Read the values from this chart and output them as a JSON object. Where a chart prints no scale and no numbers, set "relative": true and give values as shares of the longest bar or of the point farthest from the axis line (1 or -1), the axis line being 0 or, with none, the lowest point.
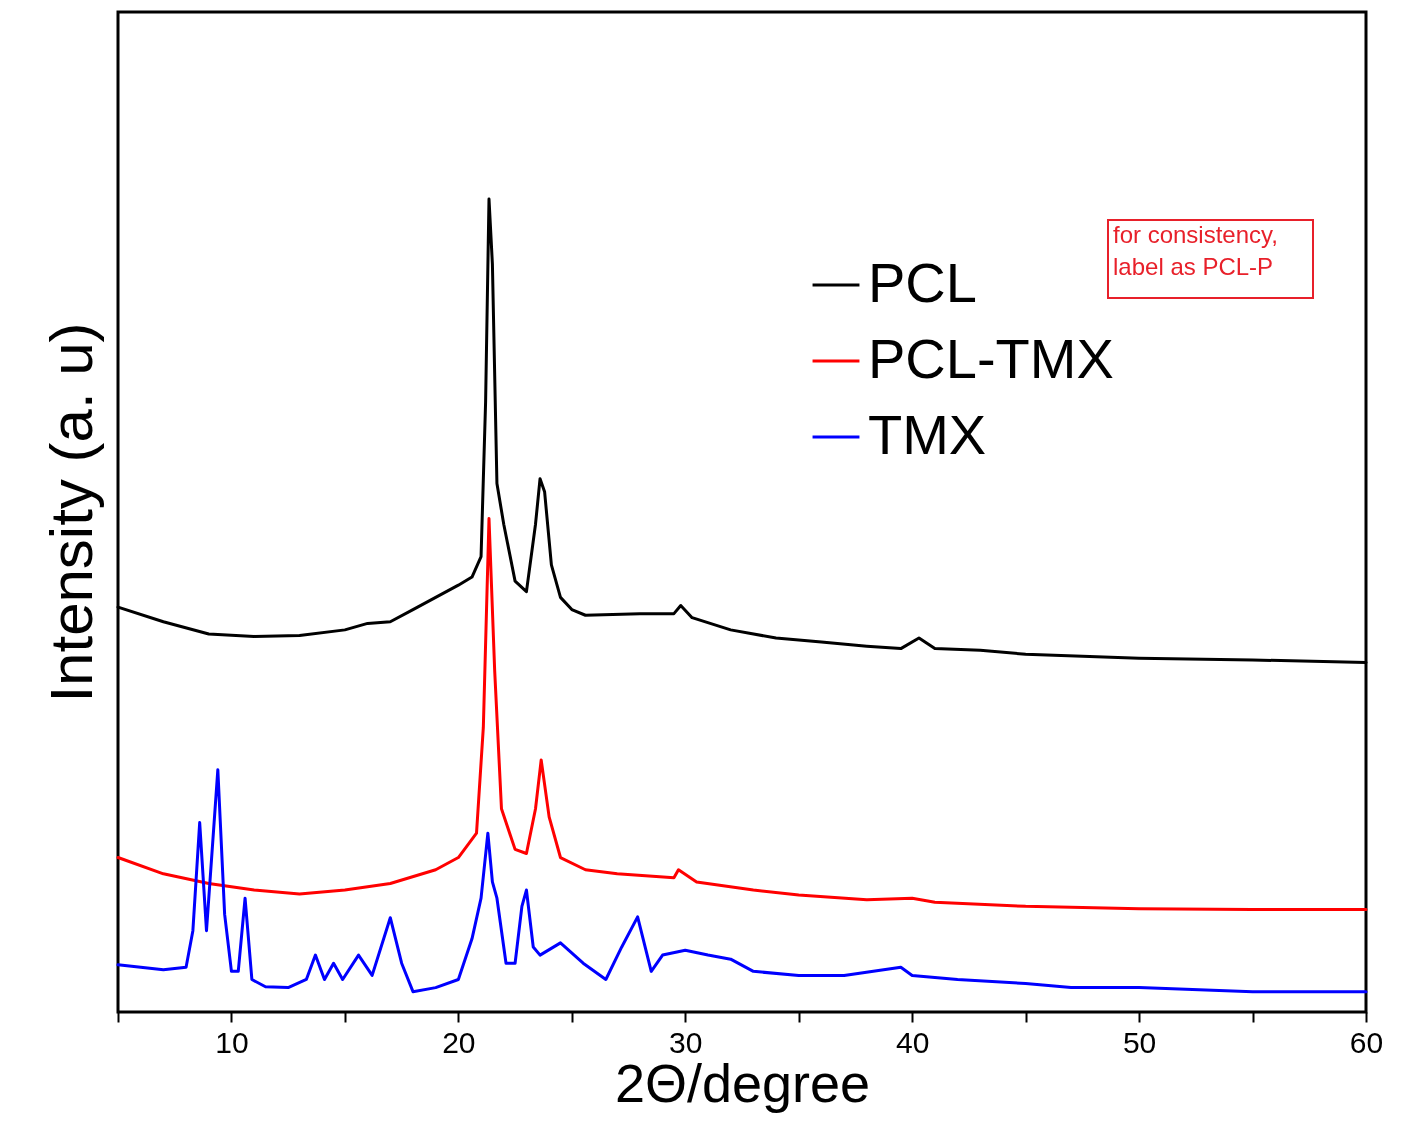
{
  "chart_data": {
    "type": "line",
    "relative": true,
    "xlabel": "2Θ/degree",
    "ylabel": "Intensity (a. u)",
    "xlim": [
      5,
      60
    ],
    "xticks": [
      {
        "value": 5,
        "label": null
      },
      10,
      {
        "value": 15,
        "label": null
      },
      20,
      {
        "value": 25,
        "label": null
      },
      30,
      {
        "value": 35,
        "label": null
      },
      40,
      {
        "value": 45,
        "label": null
      },
      50,
      {
        "value": 55,
        "label": null
      },
      60
    ],
    "grid": false,
    "legend": "top right",
    "marker": "none",
    "line_style": "solid",
    "annotations": [
      "for consistency,\nlabel as PCL-P"
    ],
    "series": [
      {
        "name": "PCL",
        "color": "#000000",
        "x": [
          5,
          7,
          9,
          11,
          13,
          15,
          16,
          17,
          18,
          19,
          20,
          20.6,
          21.0,
          21.2,
          21.35,
          21.5,
          21.7,
          22.0,
          22.5,
          23.0,
          23.4,
          23.6,
          23.8,
          24.1,
          24.5,
          25,
          25.6,
          28,
          29.5,
          29.8,
          30.3,
          32,
          34,
          36,
          38,
          39.5,
          40.3,
          41,
          43,
          45,
          50,
          55,
          60
        ],
        "values": [
          0.498,
          0.48,
          0.465,
          0.462,
          0.463,
          0.47,
          0.478,
          0.48,
          0.495,
          0.51,
          0.525,
          0.535,
          0.56,
          0.75,
          1.0,
          0.92,
          0.65,
          0.6,
          0.53,
          0.517,
          0.6,
          0.656,
          0.64,
          0.55,
          0.51,
          0.495,
          0.488,
          0.49,
          0.49,
          0.5,
          0.485,
          0.47,
          0.46,
          0.455,
          0.45,
          0.447,
          0.46,
          0.447,
          0.445,
          0.44,
          0.435,
          0.433,
          0.43
        ]
      },
      {
        "name": "PCL-TMX",
        "color": "#ff0000",
        "x": [
          5,
          7,
          9,
          11,
          13,
          15,
          17,
          19,
          20,
          20.8,
          21.1,
          21.35,
          21.6,
          21.9,
          22.5,
          23,
          23.4,
          23.65,
          24,
          24.5,
          25.6,
          27,
          29.5,
          29.7,
          30.5,
          33,
          35,
          38,
          40,
          41,
          45,
          50,
          55,
          60
        ],
        "values": [
          0.19,
          0.17,
          0.158,
          0.15,
          0.145,
          0.15,
          0.158,
          0.175,
          0.19,
          0.22,
          0.35,
          0.607,
          0.42,
          0.25,
          0.2,
          0.195,
          0.25,
          0.31,
          0.24,
          0.19,
          0.175,
          0.17,
          0.165,
          0.175,
          0.16,
          0.15,
          0.144,
          0.138,
          0.14,
          0.135,
          0.13,
          0.127,
          0.126,
          0.126
        ]
      },
      {
        "name": "TMX",
        "color": "#0000ff",
        "x": [
          5,
          6,
          7,
          8,
          8.3,
          8.6,
          8.9,
          9.4,
          9.7,
          10.0,
          10.3,
          10.6,
          10.9,
          11.5,
          12.5,
          13.3,
          13.7,
          14.1,
          14.5,
          14.9,
          15.6,
          16.2,
          17.0,
          17.5,
          18.0,
          19,
          20,
          20.6,
          21.0,
          21.3,
          21.5,
          21.7,
          22.1,
          22.5,
          22.8,
          23.0,
          23.3,
          23.6,
          24.5,
          25.5,
          26.5,
          27.2,
          27.9,
          28.5,
          29,
          30,
          31,
          32,
          33,
          35,
          37,
          39.5,
          40,
          42,
          45,
          47,
          50,
          55,
          60
        ],
        "values": [
          0.058,
          0.055,
          0.052,
          0.055,
          0.1,
          0.233,
          0.1,
          0.298,
          0.12,
          0.05,
          0.05,
          0.14,
          0.04,
          0.031,
          0.03,
          0.04,
          0.07,
          0.04,
          0.06,
          0.04,
          0.07,
          0.045,
          0.116,
          0.06,
          0.025,
          0.03,
          0.04,
          0.09,
          0.14,
          0.22,
          0.16,
          0.14,
          0.06,
          0.06,
          0.13,
          0.15,
          0.08,
          0.07,
          0.085,
          0.06,
          0.04,
          0.08,
          0.117,
          0.05,
          0.07,
          0.076,
          0.07,
          0.065,
          0.05,
          0.045,
          0.045,
          0.055,
          0.045,
          0.04,
          0.035,
          0.03,
          0.03,
          0.025,
          0.025
        ]
      }
    ]
  }
}
